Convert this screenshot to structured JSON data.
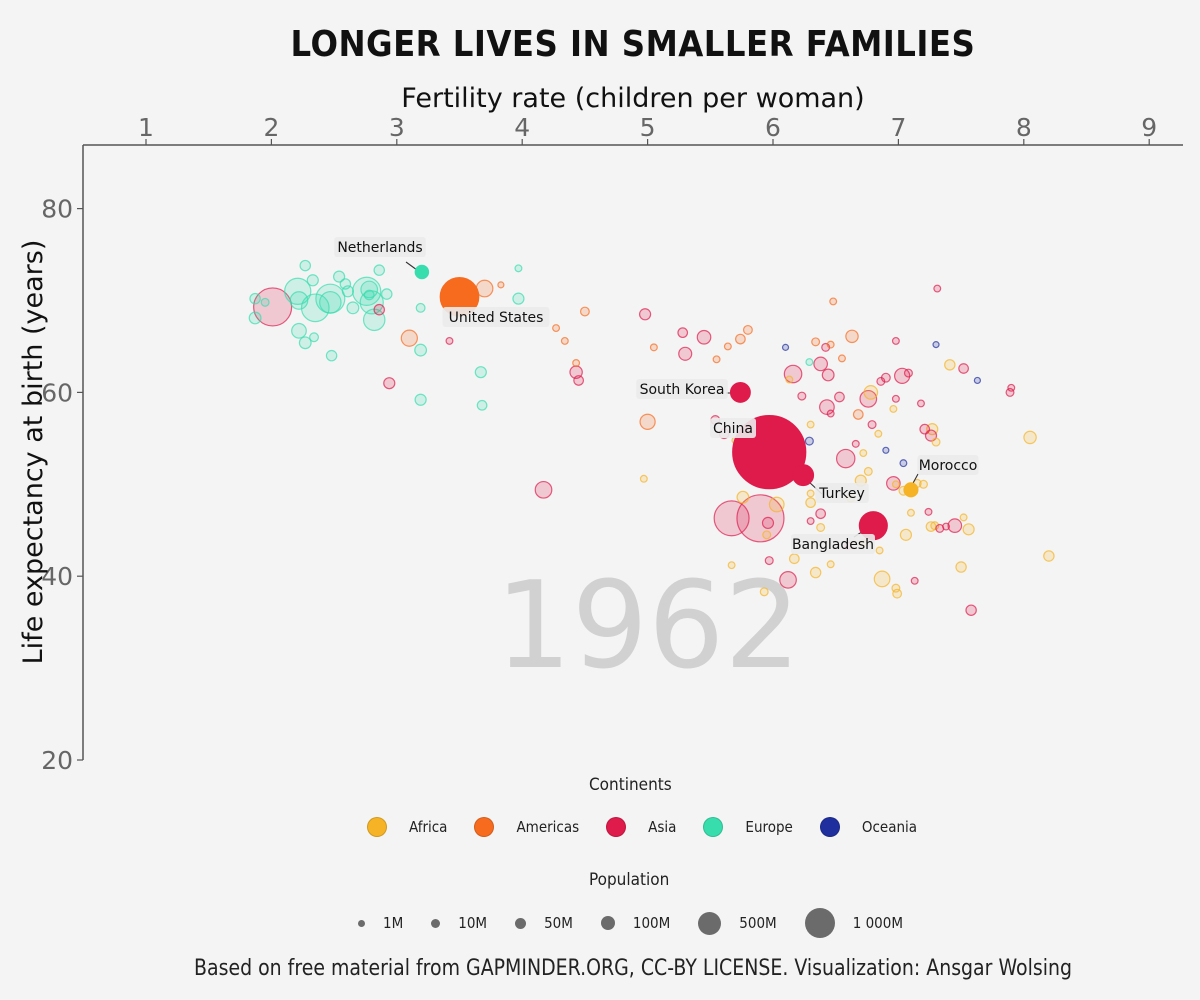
{
  "title": "LONGER LIVES IN SMALLER FAMILIES",
  "caption": "Based on free material from GAPMINDER.ORG, CC-BY LICENSE. Visualization: Ansgar Wolsing",
  "colors": {
    "Africa": "#F5B325",
    "Americas": "#F76B1F",
    "Asia": "#DE1B4B",
    "Europe": "#38DDAE",
    "Oceania": "#1F2F9E",
    "background": "#f4f4f4",
    "year_watermark": "#d1d1d1",
    "axis": "#555555"
  },
  "legend": {
    "continents_title": "Continents",
    "continents": [
      {
        "name": "Africa",
        "color": "#F5B325"
      },
      {
        "name": "Americas",
        "color": "#F76B1F"
      },
      {
        "name": "Asia",
        "color": "#DE1B4B"
      },
      {
        "name": "Europe",
        "color": "#38DDAE"
      },
      {
        "name": "Oceania",
        "color": "#1F2F9E"
      }
    ],
    "population_title": "Population",
    "population": [
      {
        "label": "1M",
        "value": 1
      },
      {
        "label": "10M",
        "value": 10
      },
      {
        "label": "50M",
        "value": 50
      },
      {
        "label": "100M",
        "value": 100
      },
      {
        "label": "500M",
        "value": 500
      },
      {
        "label": "1 000M",
        "value": 1000
      }
    ]
  },
  "chart_data": {
    "type": "scatter",
    "year_label": "1962",
    "xlabel": "Fertility rate (children per woman)",
    "ylabel": "Life expectancy at birth (years)",
    "xlim": [
      0.5,
      9.3
    ],
    "ylim": [
      20,
      87
    ],
    "x_ticks": [
      1,
      2,
      3,
      4,
      5,
      6,
      7,
      8,
      9
    ],
    "y_ticks": [
      20,
      40,
      60,
      80
    ],
    "x_axis_position": "top",
    "grid": false,
    "size_encodes": "Population (millions)",
    "highlighted": [
      {
        "name": "Netherlands",
        "continent": "Europe",
        "x": 3.2,
        "y": 73.1,
        "pop": 12
      },
      {
        "name": "United States",
        "continent": "Americas",
        "x": 3.5,
        "y": 70.4,
        "pop": 190
      },
      {
        "name": "South Korea",
        "continent": "Asia",
        "x": 5.74,
        "y": 60.0,
        "pop": 26
      },
      {
        "name": "China",
        "continent": "Asia",
        "x": 5.97,
        "y": 53.5,
        "pop": 680
      },
      {
        "name": "Morocco",
        "continent": "Africa",
        "x": 7.1,
        "y": 49.4,
        "pop": 13
      },
      {
        "name": "Turkey",
        "continent": "Asia",
        "x": 6.24,
        "y": 51.0,
        "pop": 29
      },
      {
        "name": "Bangladesh",
        "continent": "Asia",
        "x": 6.8,
        "y": 45.5,
        "pop": 52
      }
    ],
    "points": [
      {
        "c": "Europe",
        "x": 1.87,
        "y": 70.2,
        "pop": 7
      },
      {
        "c": "Europe",
        "x": 1.87,
        "y": 68.1,
        "pop": 9
      },
      {
        "c": "Europe",
        "x": 1.95,
        "y": 69.8,
        "pop": 4
      },
      {
        "c": "Asia",
        "x": 2.01,
        "y": 69.3,
        "pop": 95
      },
      {
        "c": "Europe",
        "x": 2.21,
        "y": 71.0,
        "pop": 45
      },
      {
        "c": "Europe",
        "x": 2.22,
        "y": 70.0,
        "pop": 20
      },
      {
        "c": "Europe",
        "x": 2.27,
        "y": 73.8,
        "pop": 7
      },
      {
        "c": "Europe",
        "x": 2.22,
        "y": 66.7,
        "pop": 14
      },
      {
        "c": "Europe",
        "x": 2.27,
        "y": 65.4,
        "pop": 9
      },
      {
        "c": "Europe",
        "x": 2.33,
        "y": 72.2,
        "pop": 8
      },
      {
        "c": "Europe",
        "x": 2.35,
        "y": 69.2,
        "pop": 50
      },
      {
        "c": "Europe",
        "x": 2.34,
        "y": 66.0,
        "pop": 5
      },
      {
        "c": "Europe",
        "x": 2.47,
        "y": 70.2,
        "pop": 55
      },
      {
        "c": "Europe",
        "x": 2.47,
        "y": 69.8,
        "pop": 30
      },
      {
        "c": "Europe",
        "x": 2.48,
        "y": 64.0,
        "pop": 7
      },
      {
        "c": "Europe",
        "x": 2.54,
        "y": 72.6,
        "pop": 8
      },
      {
        "c": "Europe",
        "x": 2.59,
        "y": 71.8,
        "pop": 7
      },
      {
        "c": "Europe",
        "x": 2.61,
        "y": 71.0,
        "pop": 8
      },
      {
        "c": "Europe",
        "x": 2.65,
        "y": 69.2,
        "pop": 9
      },
      {
        "c": "Europe",
        "x": 2.76,
        "y": 71.0,
        "pop": 52
      },
      {
        "c": "Europe",
        "x": 2.78,
        "y": 71.2,
        "pop": 18
      },
      {
        "c": "Europe",
        "x": 2.8,
        "y": 69.8,
        "pop": 35
      },
      {
        "c": "Europe",
        "x": 2.78,
        "y": 70.6,
        "pop": 6
      },
      {
        "c": "Europe",
        "x": 2.82,
        "y": 67.9,
        "pop": 30
      },
      {
        "c": "Europe",
        "x": 2.86,
        "y": 73.3,
        "pop": 7
      },
      {
        "c": "Asia",
        "x": 2.86,
        "y": 69.0,
        "pop": 7
      },
      {
        "c": "Europe",
        "x": 2.92,
        "y": 70.7,
        "pop": 7
      },
      {
        "c": "Asia",
        "x": 2.94,
        "y": 61.0,
        "pop": 8
      },
      {
        "c": "Europe",
        "x": 3.19,
        "y": 69.2,
        "pop": 5
      },
      {
        "c": "Europe",
        "x": 3.19,
        "y": 64.6,
        "pop": 9
      },
      {
        "c": "Europe",
        "x": 3.19,
        "y": 59.2,
        "pop": 8
      },
      {
        "c": "Americas",
        "x": 3.1,
        "y": 65.9,
        "pop": 17
      },
      {
        "c": "Asia",
        "x": 3.42,
        "y": 65.6,
        "pop": 3
      },
      {
        "c": "Oceania",
        "x": 3.42,
        "y": 71.2,
        "pop": 10
      },
      {
        "c": "Oceania",
        "x": 3.52,
        "y": 71.4,
        "pop": 2.5
      },
      {
        "c": "Americas",
        "x": 3.7,
        "y": 71.3,
        "pop": 18
      },
      {
        "c": "Americas",
        "x": 3.83,
        "y": 71.7,
        "pop": 2
      },
      {
        "c": "Europe",
        "x": 3.67,
        "y": 62.2,
        "pop": 8
      },
      {
        "c": "Europe",
        "x": 3.68,
        "y": 58.6,
        "pop": 6
      },
      {
        "c": "Europe",
        "x": 3.97,
        "y": 73.5,
        "pop": 3
      },
      {
        "c": "Europe",
        "x": 3.97,
        "y": 70.2,
        "pop": 8
      },
      {
        "c": "Americas",
        "x": 4.27,
        "y": 67.0,
        "pop": 3
      },
      {
        "c": "Americas",
        "x": 4.34,
        "y": 65.6,
        "pop": 3
      },
      {
        "c": "Americas",
        "x": 4.43,
        "y": 63.2,
        "pop": 3
      },
      {
        "c": "Asia",
        "x": 4.43,
        "y": 62.2,
        "pop": 10
      },
      {
        "c": "Asia",
        "x": 4.45,
        "y": 61.3,
        "pop": 6
      },
      {
        "c": "Americas",
        "x": 4.5,
        "y": 68.8,
        "pop": 5
      },
      {
        "c": "Asia",
        "x": 4.17,
        "y": 49.4,
        "pop": 18
      },
      {
        "c": "Asia",
        "x": 4.98,
        "y": 68.5,
        "pop": 8
      },
      {
        "c": "Americas",
        "x": 5.05,
        "y": 64.9,
        "pop": 3
      },
      {
        "c": "Americas",
        "x": 5.0,
        "y": 56.8,
        "pop": 15
      },
      {
        "c": "Africa",
        "x": 4.97,
        "y": 50.6,
        "pop": 3
      },
      {
        "c": "Asia",
        "x": 5.28,
        "y": 66.5,
        "pop": 6
      },
      {
        "c": "Asia",
        "x": 5.3,
        "y": 64.2,
        "pop": 11
      },
      {
        "c": "Asia",
        "x": 5.45,
        "y": 66.0,
        "pop": 12
      },
      {
        "c": "Americas",
        "x": 5.55,
        "y": 63.6,
        "pop": 3
      },
      {
        "c": "Americas",
        "x": 5.64,
        "y": 65.0,
        "pop": 3
      },
      {
        "c": "Americas",
        "x": 5.74,
        "y": 65.8,
        "pop": 6
      },
      {
        "c": "Americas",
        "x": 5.8,
        "y": 66.8,
        "pop": 5
      },
      {
        "c": "Asia",
        "x": 5.54,
        "y": 57.0,
        "pop": 5
      },
      {
        "c": "Asia",
        "x": 5.61,
        "y": 55.5,
        "pop": 6
      },
      {
        "c": "Americas",
        "x": 5.8,
        "y": 53.4,
        "pop": 3
      },
      {
        "c": "Africa",
        "x": 5.7,
        "y": 54.8,
        "pop": 3
      },
      {
        "c": "Africa",
        "x": 5.76,
        "y": 48.6,
        "pop": 9
      },
      {
        "c": "Asia",
        "x": 5.67,
        "y": 46.3,
        "pop": 80
      },
      {
        "c": "Asia",
        "x": 5.9,
        "y": 46.3,
        "pop": 280
      },
      {
        "c": "Asia",
        "x": 5.96,
        "y": 45.8,
        "pop": 8
      },
      {
        "c": "Africa",
        "x": 5.95,
        "y": 44.5,
        "pop": 4
      },
      {
        "c": "Africa",
        "x": 6.03,
        "y": 47.8,
        "pop": 14
      },
      {
        "c": "Africa",
        "x": 5.67,
        "y": 41.2,
        "pop": 3
      },
      {
        "c": "Africa",
        "x": 5.93,
        "y": 38.3,
        "pop": 4
      },
      {
        "c": "Asia",
        "x": 5.97,
        "y": 41.7,
        "pop": 4
      },
      {
        "c": "Asia",
        "x": 6.12,
        "y": 39.6,
        "pop": 18
      },
      {
        "c": "Africa",
        "x": 6.17,
        "y": 41.9,
        "pop": 6
      },
      {
        "c": "Africa",
        "x": 6.03,
        "y": 54.9,
        "pop": 30
      },
      {
        "c": "Africa",
        "x": 6.16,
        "y": 53.6,
        "pop": 30
      },
      {
        "c": "Asia",
        "x": 5.98,
        "y": 51.7,
        "pop": 9
      },
      {
        "c": "Africa",
        "x": 6.13,
        "y": 61.4,
        "pop": 3
      },
      {
        "c": "Asia",
        "x": 6.16,
        "y": 62.0,
        "pop": 20
      },
      {
        "c": "Oceania",
        "x": 6.1,
        "y": 64.9,
        "pop": 2
      },
      {
        "c": "Asia",
        "x": 6.23,
        "y": 59.6,
        "pop": 4
      },
      {
        "c": "Africa",
        "x": 6.3,
        "y": 56.5,
        "pop": 3
      },
      {
        "c": "Oceania",
        "x": 6.29,
        "y": 54.7,
        "pop": 4
      },
      {
        "c": "Europe",
        "x": 6.29,
        "y": 63.3,
        "pop": 3
      },
      {
        "c": "Americas",
        "x": 6.34,
        "y": 65.5,
        "pop": 4
      },
      {
        "c": "Asia",
        "x": 6.38,
        "y": 63.1,
        "pop": 12
      },
      {
        "c": "Asia",
        "x": 6.42,
        "y": 64.9,
        "pop": 4
      },
      {
        "c": "Americas",
        "x": 6.46,
        "y": 65.2,
        "pop": 3
      },
      {
        "c": "Americas",
        "x": 6.48,
        "y": 69.9,
        "pop": 3
      },
      {
        "c": "Asia",
        "x": 6.44,
        "y": 61.9,
        "pop": 9
      },
      {
        "c": "Asia",
        "x": 6.43,
        "y": 58.4,
        "pop": 14
      },
      {
        "c": "Asia",
        "x": 6.46,
        "y": 57.7,
        "pop": 3
      },
      {
        "c": "Asia",
        "x": 6.53,
        "y": 59.5,
        "pop": 6
      },
      {
        "c": "Americas",
        "x": 6.55,
        "y": 63.7,
        "pop": 3
      },
      {
        "c": "Americas",
        "x": 6.63,
        "y": 66.1,
        "pop": 10
      },
      {
        "c": "Americas",
        "x": 6.68,
        "y": 57.6,
        "pop": 6
      },
      {
        "c": "Asia",
        "x": 6.58,
        "y": 52.8,
        "pop": 22
      },
      {
        "c": "Asia",
        "x": 6.66,
        "y": 54.4,
        "pop": 3
      },
      {
        "c": "Africa",
        "x": 6.72,
        "y": 53.4,
        "pop": 3
      },
      {
        "c": "Africa",
        "x": 6.7,
        "y": 50.4,
        "pop": 8
      },
      {
        "c": "Africa",
        "x": 6.62,
        "y": 48.5,
        "pop": 4
      },
      {
        "c": "Africa",
        "x": 6.3,
        "y": 49.0,
        "pop": 3
      },
      {
        "c": "Africa",
        "x": 6.3,
        "y": 48.0,
        "pop": 6
      },
      {
        "c": "Asia",
        "x": 6.3,
        "y": 46.0,
        "pop": 3
      },
      {
        "c": "Asia",
        "x": 6.38,
        "y": 46.8,
        "pop": 6
      },
      {
        "c": "Africa",
        "x": 6.38,
        "y": 45.3,
        "pop": 4
      },
      {
        "c": "Africa",
        "x": 6.34,
        "y": 40.4,
        "pop": 7
      },
      {
        "c": "Africa",
        "x": 6.46,
        "y": 41.3,
        "pop": 3
      },
      {
        "c": "Africa",
        "x": 6.76,
        "y": 51.4,
        "pop": 4
      },
      {
        "c": "Africa",
        "x": 6.75,
        "y": 46.0,
        "pop": 3
      },
      {
        "c": "Africa",
        "x": 6.72,
        "y": 43.6,
        "pop": 3
      },
      {
        "c": "Asia",
        "x": 6.6,
        "y": 43.3,
        "pop": 3
      },
      {
        "c": "Africa",
        "x": 6.85,
        "y": 42.8,
        "pop": 3
      },
      {
        "c": "Africa",
        "x": 6.87,
        "y": 39.7,
        "pop": 16
      },
      {
        "c": "Africa",
        "x": 6.98,
        "y": 38.7,
        "pop": 4
      },
      {
        "c": "Africa",
        "x": 6.99,
        "y": 38.1,
        "pop": 5
      },
      {
        "c": "Asia",
        "x": 6.76,
        "y": 59.3,
        "pop": 18
      },
      {
        "c": "Africa",
        "x": 6.78,
        "y": 60.0,
        "pop": 12
      },
      {
        "c": "Asia",
        "x": 6.79,
        "y": 56.5,
        "pop": 4
      },
      {
        "c": "Africa",
        "x": 6.84,
        "y": 55.5,
        "pop": 3
      },
      {
        "c": "Asia",
        "x": 6.86,
        "y": 61.2,
        "pop": 4
      },
      {
        "c": "Asia",
        "x": 6.9,
        "y": 61.6,
        "pop": 5
      },
      {
        "c": "Asia",
        "x": 6.98,
        "y": 59.3,
        "pop": 3
      },
      {
        "c": "Asia",
        "x": 6.98,
        "y": 65.6,
        "pop": 3
      },
      {
        "c": "Asia",
        "x": 7.03,
        "y": 61.8,
        "pop": 15
      },
      {
        "c": "Asia",
        "x": 7.08,
        "y": 62.1,
        "pop": 4
      },
      {
        "c": "Africa",
        "x": 6.96,
        "y": 58.2,
        "pop": 3
      },
      {
        "c": "Oceania",
        "x": 6.9,
        "y": 53.7,
        "pop": 2
      },
      {
        "c": "Oceania",
        "x": 7.04,
        "y": 52.3,
        "pop": 3
      },
      {
        "c": "Africa",
        "x": 6.98,
        "y": 50.0,
        "pop": 3
      },
      {
        "c": "Asia",
        "x": 6.96,
        "y": 50.1,
        "pop": 12
      },
      {
        "c": "Africa",
        "x": 7.04,
        "y": 49.3,
        "pop": 5
      },
      {
        "c": "Africa",
        "x": 7.15,
        "y": 50.1,
        "pop": 4
      },
      {
        "c": "Africa",
        "x": 7.2,
        "y": 50.0,
        "pop": 4
      },
      {
        "c": "Africa",
        "x": 7.06,
        "y": 44.5,
        "pop": 8
      },
      {
        "c": "Africa",
        "x": 7.1,
        "y": 46.9,
        "pop": 3
      },
      {
        "c": "Asia",
        "x": 7.18,
        "y": 58.8,
        "pop": 3
      },
      {
        "c": "Asia",
        "x": 7.21,
        "y": 56.0,
        "pop": 6
      },
      {
        "c": "Africa",
        "x": 7.27,
        "y": 56.0,
        "pop": 8
      },
      {
        "c": "Asia",
        "x": 7.26,
        "y": 55.3,
        "pop": 8
      },
      {
        "c": "Africa",
        "x": 7.3,
        "y": 54.6,
        "pop": 4
      },
      {
        "c": "Asia",
        "x": 7.24,
        "y": 47.0,
        "pop": 3
      },
      {
        "c": "Africa",
        "x": 7.26,
        "y": 45.4,
        "pop": 6
      },
      {
        "c": "Africa",
        "x": 7.29,
        "y": 45.5,
        "pop": 4
      },
      {
        "c": "Asia",
        "x": 7.33,
        "y": 45.2,
        "pop": 4
      },
      {
        "c": "Asia",
        "x": 7.31,
        "y": 71.3,
        "pop": 3
      },
      {
        "c": "Oceania",
        "x": 7.3,
        "y": 65.2,
        "pop": 2
      },
      {
        "c": "Africa",
        "x": 7.41,
        "y": 63.0,
        "pop": 7
      },
      {
        "c": "Asia",
        "x": 7.52,
        "y": 62.6,
        "pop": 6
      },
      {
        "c": "Oceania",
        "x": 7.63,
        "y": 61.3,
        "pop": 2
      },
      {
        "c": "Asia",
        "x": 7.38,
        "y": 45.4,
        "pop": 3
      },
      {
        "c": "Asia",
        "x": 7.45,
        "y": 45.5,
        "pop": 12
      },
      {
        "c": "Africa",
        "x": 7.52,
        "y": 46.4,
        "pop": 3
      },
      {
        "c": "Africa",
        "x": 7.56,
        "y": 45.1,
        "pop": 8
      },
      {
        "c": "Africa",
        "x": 7.5,
        "y": 41.0,
        "pop": 7
      },
      {
        "c": "Asia",
        "x": 7.58,
        "y": 36.3,
        "pop": 7
      },
      {
        "c": "Asia",
        "x": 7.13,
        "y": 39.5,
        "pop": 3
      },
      {
        "c": "Asia",
        "x": 7.9,
        "y": 60.5,
        "pop": 3
      },
      {
        "c": "Asia",
        "x": 7.89,
        "y": 60.0,
        "pop": 4
      },
      {
        "c": "Africa",
        "x": 8.05,
        "y": 55.1,
        "pop": 10
      },
      {
        "c": "Africa",
        "x": 8.2,
        "y": 42.2,
        "pop": 7
      }
    ]
  }
}
